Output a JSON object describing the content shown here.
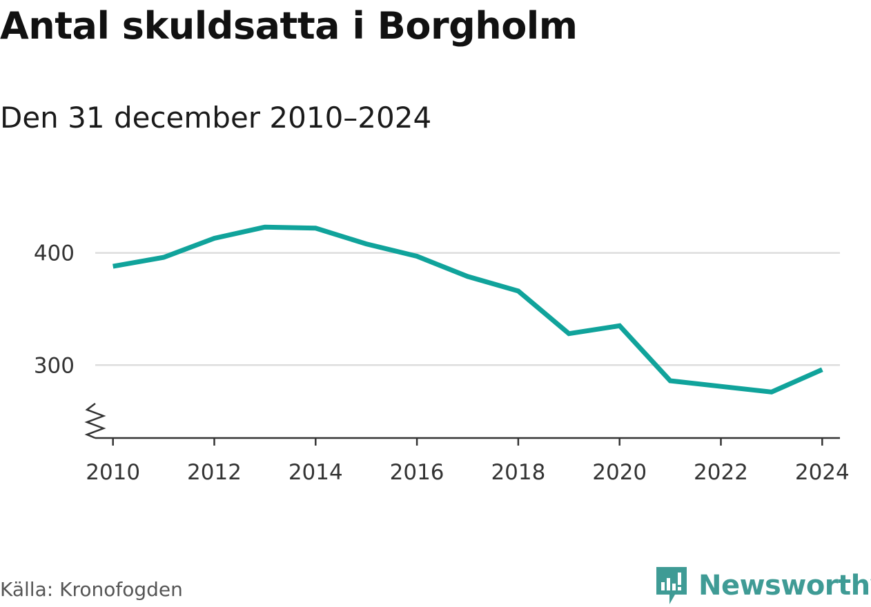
{
  "header": {
    "title": "Antal skuldsatta i Borgholm",
    "subtitle": "Den 31 december 2010–2024"
  },
  "footer": {
    "source": "Källa: Kronofogden",
    "brand": "Newsworthy",
    "brand_icon": "newsworthy-logo-icon",
    "brand_color": "#3f9b95"
  },
  "chart_data": {
    "type": "line",
    "title": "Antal skuldsatta i Borgholm",
    "subtitle": "Den 31 december 2010–2024",
    "xlabel": "",
    "ylabel": "",
    "x": [
      2010,
      2011,
      2012,
      2013,
      2014,
      2015,
      2016,
      2017,
      2018,
      2019,
      2020,
      2021,
      2022,
      2023,
      2024
    ],
    "series": [
      {
        "values": [
          388,
          396,
          413,
          423,
          422,
          408,
          397,
          379,
          366,
          328,
          335,
          286,
          281,
          276,
          296
        ],
        "color": "#10a39b"
      }
    ],
    "xlim": [
      2009.65,
      2024.35
    ],
    "ylim": [
      235,
      422.5
    ],
    "x_ticks": [
      "2010",
      "2012",
      "2014",
      "2016",
      "2018",
      "2020",
      "2022",
      "2024"
    ],
    "y_ticks": [
      "300",
      "400"
    ],
    "grid": "horizontal",
    "axis_break": true,
    "legend": "none"
  }
}
